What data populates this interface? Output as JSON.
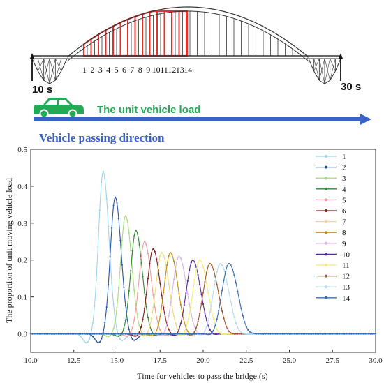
{
  "bridge_diagram": {
    "start_time_label": "10 s",
    "end_time_label": "30 s",
    "load_label": "The unit vehicle load",
    "direction_label": "Vehicle passing direction",
    "section_numbers": [
      "1",
      "2",
      "3",
      "4",
      "5",
      "6",
      "7",
      "8",
      "9",
      "10",
      "11",
      "12",
      "13",
      "14"
    ],
    "colors": {
      "load": "#22aa55",
      "direction": "#3a62c8",
      "highlight": "#e03030",
      "truss": "#333333"
    },
    "icons": [
      "car-icon",
      "arrow-right-icon"
    ]
  },
  "chart_data": {
    "type": "line",
    "title": "",
    "xlabel": "Time for vehicles to pass the bridge (s)",
    "ylabel": "The proportion of  unit moving vehicle load",
    "xlim": [
      10.0,
      30.0
    ],
    "ylim": [
      -0.05,
      0.5
    ],
    "x_ticks": [
      "10.0",
      "12.5",
      "15.0",
      "17.5",
      "20.0",
      "22.5",
      "25.0",
      "27.5",
      "30.0"
    ],
    "y_ticks": [
      "0.0",
      "0.1",
      "0.2",
      "0.3",
      "0.4",
      "0.5"
    ],
    "legend_position": "top-right",
    "series": [
      {
        "name": "1",
        "color": "#9fd6ee",
        "peak_x": 14.2,
        "peak_y": 0.44
      },
      {
        "name": "2",
        "color": "#2a55a8",
        "peak_x": 14.9,
        "peak_y": 0.37
      },
      {
        "name": "3",
        "color": "#a8dc78",
        "peak_x": 15.5,
        "peak_y": 0.32
      },
      {
        "name": "4",
        "color": "#2e8a2e",
        "peak_x": 16.1,
        "peak_y": 0.28
      },
      {
        "name": "5",
        "color": "#f0a0a0",
        "peak_x": 16.6,
        "peak_y": 0.25
      },
      {
        "name": "6",
        "color": "#8a1a1a",
        "peak_x": 17.1,
        "peak_y": 0.23
      },
      {
        "name": "7",
        "color": "#f0dc80",
        "peak_x": 17.6,
        "peak_y": 0.22
      },
      {
        "name": "8",
        "color": "#c8900a",
        "peak_x": 18.1,
        "peak_y": 0.22
      },
      {
        "name": "9",
        "color": "#d6b8e8",
        "peak_x": 18.6,
        "peak_y": 0.21
      },
      {
        "name": "10",
        "color": "#5a2a9a",
        "peak_x": 19.4,
        "peak_y": 0.2
      },
      {
        "name": "11",
        "color": "#f8ec70",
        "peak_x": 19.8,
        "peak_y": 0.2
      },
      {
        "name": "12",
        "color": "#a8582a",
        "peak_x": 20.4,
        "peak_y": 0.19
      },
      {
        "name": "13",
        "color": "#b8dcf4",
        "peak_x": 21.0,
        "peak_y": 0.19
      },
      {
        "name": "14",
        "color": "#3a70b0",
        "peak_x": 21.5,
        "peak_y": 0.19
      }
    ]
  }
}
